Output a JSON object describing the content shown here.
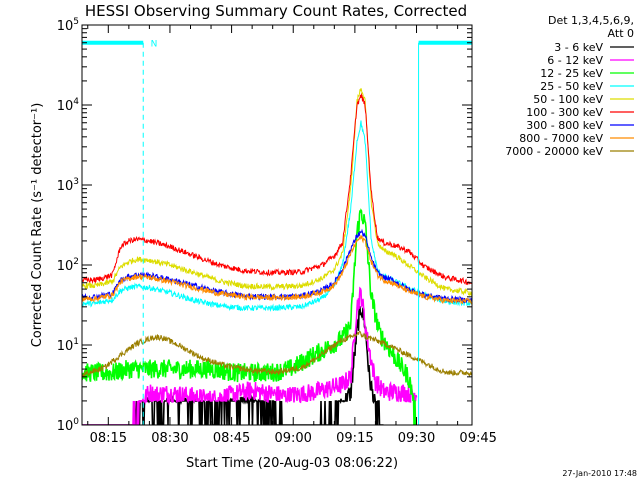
{
  "chart_data": {
    "type": "line",
    "title": "HESSI Observing Summary Count Rates, Corrected",
    "xlabel": "Start Time (20-Aug-03 08:06:22)",
    "ylabel": "Corrected Count Rate (s⁻¹ detector⁻¹)",
    "y_scale": "log",
    "ylim": [
      1,
      100000
    ],
    "xlim_minutes": [
      8.6,
      103.5
    ],
    "x_ticks": [
      {
        "label": "08:15",
        "minute": 15
      },
      {
        "label": "08:30",
        "minute": 30
      },
      {
        "label": "08:45",
        "minute": 45
      },
      {
        "label": "09:00",
        "minute": 60
      },
      {
        "label": "09:15",
        "minute": 75
      },
      {
        "label": "09:30",
        "minute": 90
      },
      {
        "label": "09:45",
        "minute": 105
      }
    ],
    "y_ticks": [
      {
        "base": "10",
        "exp": "0",
        "value": 1
      },
      {
        "base": "10",
        "exp": "1",
        "value": 10
      },
      {
        "base": "10",
        "exp": "2",
        "value": 100
      },
      {
        "base": "10",
        "exp": "3",
        "value": 1000
      },
      {
        "base": "10",
        "exp": "4",
        "value": 10000
      },
      {
        "base": "10",
        "exp": "5",
        "value": 100000
      }
    ],
    "legend_title": [
      "Det 1,3,4,5,6,9,",
      "Att 0"
    ],
    "legend_position": "right",
    "series": [
      {
        "name": "3 - 6 keV",
        "color": "#000000",
        "x": [
          8.6,
          20,
          22,
          24,
          25,
          26,
          30,
          40,
          50,
          56,
          58,
          62,
          66,
          70,
          72,
          74,
          75.5,
          76.5,
          77.5,
          78.5,
          80.5,
          82
        ],
        "y": [
          0.9,
          0.9,
          1.2,
          1.6,
          1.9,
          1.4,
          1.8,
          1.5,
          1.8,
          1.5,
          0.9,
          0.9,
          1.1,
          1.3,
          1.8,
          2.5,
          15,
          30,
          18,
          4,
          1.2,
          0.9
        ]
      },
      {
        "name": "6 - 12 keV",
        "color": "#ff00ff",
        "x": [
          8.6,
          20,
          22,
          24,
          25,
          26,
          30,
          40,
          50,
          56,
          58,
          64,
          68,
          72,
          74,
          75.5,
          76.5,
          78,
          80,
          82,
          86,
          90
        ],
        "y": [
          0.9,
          0.9,
          1.5,
          2.2,
          2.6,
          2.4,
          2.5,
          2.1,
          2.7,
          2.4,
          2.3,
          2.5,
          2.8,
          3.2,
          4,
          30,
          45,
          12,
          3.5,
          2.6,
          2.6,
          2.4
        ]
      },
      {
        "name": "12 - 25 keV",
        "color": "#00ff00",
        "x": [
          8.6,
          16,
          20,
          25,
          30,
          35,
          40,
          46,
          52,
          56,
          60,
          64,
          68,
          72,
          74,
          75.5,
          76.5,
          77.5,
          79,
          81,
          84,
          88,
          89,
          90
        ],
        "y": [
          4.5,
          4.5,
          5,
          5,
          5,
          5,
          5,
          4.5,
          4.5,
          4.6,
          5.2,
          7,
          9,
          12,
          18,
          250,
          480,
          320,
          40,
          14,
          8,
          4,
          2.5,
          0.9
        ]
      },
      {
        "name": "25 - 50 keV",
        "color": "#00ffff",
        "x": [
          8.6,
          12,
          16,
          18,
          20,
          22,
          25,
          30,
          36,
          42,
          48,
          55,
          62,
          67,
          70,
          72,
          74,
          75.5,
          76.5,
          77.5,
          79,
          80.5,
          82,
          84,
          88,
          92,
          97,
          103.5
        ],
        "y": [
          33,
          33,
          37,
          48,
          52,
          54,
          52,
          45,
          36,
          31,
          29,
          29,
          30,
          38,
          55,
          100,
          500,
          3500,
          6000,
          3500,
          200,
          85,
          72,
          65,
          52,
          42,
          35,
          33
        ]
      },
      {
        "name": "50 - 100 keV",
        "color": "#dddd00",
        "x": [
          8.6,
          12,
          16,
          18,
          20,
          22,
          25,
          30,
          36,
          42,
          48,
          55,
          62,
          67,
          70,
          72,
          74,
          75.5,
          76.5,
          77.5,
          79,
          80.5,
          82,
          84,
          88,
          92,
          97,
          103.5
        ],
        "y": [
          55,
          55,
          62,
          95,
          110,
          118,
          115,
          100,
          80,
          63,
          55,
          53,
          55,
          68,
          88,
          140,
          900,
          11000,
          16500,
          11000,
          600,
          190,
          150,
          140,
          100,
          70,
          50,
          45
        ]
      },
      {
        "name": "100 - 300 keV",
        "color": "#ff0000",
        "x": [
          8.6,
          12,
          16,
          18,
          20,
          22,
          25,
          30,
          36,
          42,
          48,
          55,
          62,
          67,
          70,
          72,
          74,
          75.5,
          76.5,
          77.5,
          79,
          80.5,
          82,
          84,
          88,
          92,
          97,
          103.5
        ],
        "y": [
          65,
          65,
          75,
          170,
          200,
          210,
          200,
          170,
          130,
          100,
          85,
          80,
          82,
          100,
          130,
          190,
          1300,
          10000,
          13000,
          10000,
          800,
          220,
          190,
          180,
          150,
          95,
          70,
          60
        ]
      },
      {
        "name": "300 - 800 keV",
        "color": "#0000ff",
        "x": [
          8.6,
          12,
          16,
          18,
          20,
          22,
          25,
          30,
          36,
          42,
          48,
          55,
          62,
          67,
          70,
          72,
          74,
          75.5,
          76.5,
          77.5,
          79,
          80.5,
          82,
          84,
          88,
          92,
          97,
          103.5
        ],
        "y": [
          40,
          40,
          44,
          65,
          72,
          76,
          74,
          66,
          55,
          46,
          41,
          40,
          41,
          48,
          60,
          90,
          160,
          230,
          260,
          230,
          120,
          80,
          70,
          65,
          50,
          42,
          38,
          36
        ]
      },
      {
        "name": "800 - 7000 keV",
        "color": "#ff8c00",
        "x": [
          8.6,
          12,
          16,
          18,
          20,
          22,
          25,
          30,
          36,
          42,
          48,
          55,
          62,
          67,
          70,
          72,
          74,
          75.5,
          76.5,
          77.5,
          79,
          80.5,
          82,
          84,
          88,
          92,
          97,
          103.5
        ],
        "y": [
          38,
          38,
          42,
          62,
          68,
          72,
          70,
          62,
          52,
          44,
          40,
          39,
          40,
          46,
          56,
          80,
          140,
          200,
          220,
          200,
          110,
          75,
          65,
          60,
          47,
          40,
          36,
          35
        ]
      },
      {
        "name": "7000 - 20000 keV",
        "color": "#9b7f00",
        "x": [
          8.6,
          14,
          18,
          22,
          26,
          28,
          32,
          38,
          44,
          50,
          56,
          62,
          66,
          70,
          72,
          74,
          76,
          78,
          80,
          84,
          88,
          92,
          96,
          98,
          103.5
        ],
        "y": [
          4.2,
          5.2,
          7.5,
          10.5,
          12.5,
          12.5,
          10,
          6.8,
          5.4,
          4.8,
          4.6,
          5.2,
          7,
          10,
          11.5,
          12.5,
          14,
          12.5,
          11.5,
          9.5,
          7.5,
          6,
          4.8,
          4.5,
          4.5
        ]
      }
    ],
    "annotations": {
      "top_bars_color": "#00ffff",
      "top_bars": [
        {
          "x0": 8.6,
          "x1": 23.5,
          "y": 60000
        },
        {
          "x0": 90.5,
          "x1": 103.5,
          "y": 60000
        }
      ],
      "dashed_lines_color": "#00ffff",
      "dashed_lines": [
        23.5,
        103.5
      ],
      "solid_lines": [
        90.5
      ],
      "marker_label": "N",
      "marker_x": 24.8,
      "marker_y": 60000
    },
    "timestamp": "27-Jan-2010 17:48"
  }
}
